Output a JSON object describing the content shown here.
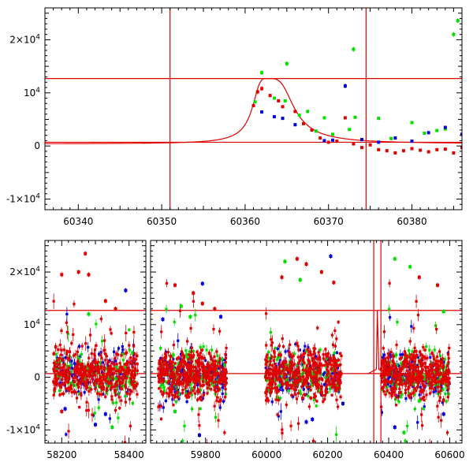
{
  "chart_data": [
    {
      "type": "scatter",
      "panel": "top",
      "title": "",
      "xlabel": "",
      "ylabel": "",
      "xlim": [
        60336,
        60386
      ],
      "ylim": [
        -12000,
        26000
      ],
      "xticks": [
        60340,
        60350,
        60360,
        60370,
        60380
      ],
      "xtick_labels": [
        "60340",
        "60350",
        "60360",
        "60370",
        "60380"
      ],
      "yticks": [
        -10000,
        0,
        10000,
        20000
      ],
      "ytick_labels": [
        {
          "base": "-1×10",
          "exp": "4"
        },
        {
          "base": "0",
          "exp": ""
        },
        {
          "base": "10",
          "exp": "4"
        },
        {
          "base": "2×10",
          "exp": "4"
        }
      ],
      "vlines": [
        60351,
        60374.5
      ],
      "hlines": [
        12700,
        700
      ],
      "model_curve": {
        "t0": 60362.7,
        "peak": 12700,
        "baseline": 400
      },
      "series": [
        {
          "color": "#e00000",
          "points": [
            [
              60361.0,
              7600
            ],
            [
              60361.5,
              10200
            ],
            [
              60362.0,
              10800
            ],
            [
              60363.0,
              9500
            ],
            [
              60364.0,
              8500
            ],
            [
              60364.5,
              7400
            ],
            [
              60366.0,
              6500
            ],
            [
              60367.0,
              4200
            ],
            [
              60368.0,
              3000
            ],
            [
              60369.0,
              1500
            ],
            [
              60370.0,
              700
            ],
            [
              60371.0,
              900
            ],
            [
              60372.0,
              5300
            ],
            [
              60373.0,
              400
            ],
            [
              60374.0,
              -300
            ],
            [
              60375.0,
              200
            ],
            [
              60376.0,
              -700
            ],
            [
              60377.0,
              -900
            ],
            [
              60378.0,
              -1300
            ],
            [
              60379.0,
              -900
            ],
            [
              60380.0,
              -500
            ],
            [
              60381.0,
              -800
            ],
            [
              60382.0,
              -1100
            ],
            [
              60383.0,
              -700
            ],
            [
              60384.0,
              -600
            ],
            [
              60385.0,
              -1300
            ],
            [
              60386.0,
              -300
            ]
          ]
        },
        {
          "color": "#00e000",
          "points": [
            [
              60361.2,
              8300
            ],
            [
              60362.0,
              13800
            ],
            [
              60363.5,
              9000
            ],
            [
              60364.8,
              8500
            ],
            [
              60365.0,
              15500
            ],
            [
              60366.5,
              5800
            ],
            [
              60367.5,
              6500
            ],
            [
              60368.5,
              2800
            ],
            [
              60369.5,
              5300
            ],
            [
              60370.5,
              2200
            ],
            [
              60372.5,
              3100
            ],
            [
              60373.0,
              18200
            ],
            [
              60373.2,
              5400
            ],
            [
              60376.0,
              5200
            ],
            [
              60377.5,
              1400
            ],
            [
              60380.0,
              4400
            ],
            [
              60381.5,
              2400
            ],
            [
              60383.0,
              2900
            ],
            [
              60384.0,
              3200
            ],
            [
              60385.0,
              21000
            ],
            [
              60385.5,
              23600
            ]
          ]
        },
        {
          "color": "#0000e0",
          "points": [
            [
              60362.0,
              6400
            ],
            [
              60363.5,
              5500
            ],
            [
              60364.5,
              5200
            ],
            [
              60366.0,
              4000
            ],
            [
              60369.5,
              1000
            ],
            [
              60370.5,
              1100
            ],
            [
              60372.0,
              11300
            ],
            [
              60374.0,
              1200
            ],
            [
              60376.0,
              700
            ],
            [
              60378.0,
              1500
            ],
            [
              60380.0,
              900
            ],
            [
              60382.0,
              2500
            ],
            [
              60384.0,
              3500
            ],
            [
              60386.0,
              2200
            ]
          ]
        }
      ]
    },
    {
      "type": "scatter",
      "panel": "bottom",
      "title": "",
      "xlabel": "",
      "ylabel": "",
      "xlim_left": [
        58150,
        58450
      ],
      "xlim_right": [
        59620,
        60640
      ],
      "ylim": [
        -12500,
        26000
      ],
      "xticks": [
        58200,
        58400,
        59800,
        60000,
        60200,
        60400,
        60600
      ],
      "xtick_labels": [
        "58200",
        "58400",
        "59800",
        "60000",
        "60200",
        "60400",
        "60600"
      ],
      "yticks": [
        -10000,
        0,
        10000,
        20000
      ],
      "ytick_labels": [
        {
          "base": "-1×10",
          "exp": "4"
        },
        {
          "base": "0",
          "exp": ""
        },
        {
          "base": "10",
          "exp": "4"
        },
        {
          "base": "2×10",
          "exp": "4"
        }
      ],
      "vlines": [
        60351,
        60374.5
      ],
      "hlines": [
        12700,
        700
      ],
      "seasons": [
        [
          58175,
          58425
        ],
        [
          59645,
          59870
        ],
        [
          59995,
          60245
        ],
        [
          60375,
          60600
        ]
      ],
      "outliers": [
        {
          "color": "#e00000",
          "points": [
            [
              58200,
              19500
            ],
            [
              58250,
              20000
            ],
            [
              58270,
              23500
            ],
            [
              58280,
              19500
            ],
            [
              58330,
              14500
            ],
            [
              58360,
              13000
            ],
            [
              59700,
              17500
            ],
            [
              59760,
              16000
            ],
            [
              59790,
              14000
            ],
            [
              59830,
              13000
            ],
            [
              60050,
              19000
            ],
            [
              60100,
              22500
            ],
            [
              60130,
              21500
            ],
            [
              60180,
              20000
            ],
            [
              60220,
              18000
            ],
            [
              60500,
              19000
            ],
            [
              60560,
              17500
            ],
            [
              58200,
              -6500
            ],
            [
              59700,
              -3500
            ]
          ]
        },
        {
          "color": "#00e000",
          "points": [
            [
              58280,
              12000
            ],
            [
              58350,
              -9500
            ],
            [
              59720,
              13500
            ],
            [
              59750,
              11500
            ],
            [
              60060,
              22000
            ],
            [
              60110,
              18500
            ],
            [
              60420,
              22500
            ],
            [
              60450,
              -10500
            ],
            [
              60470,
              21000
            ],
            [
              60500,
              -4500
            ],
            [
              60580,
              12500
            ],
            [
              59700,
              -6500
            ]
          ]
        },
        {
          "color": "#0000e0",
          "points": [
            [
              58390,
              16500
            ],
            [
              58210,
              -6000
            ],
            [
              58300,
              -9000
            ],
            [
              58330,
              -7000
            ],
            [
              59660,
              11000
            ],
            [
              59790,
              17800
            ],
            [
              59850,
              11500
            ],
            [
              60210,
              23000
            ],
            [
              60150,
              -8000
            ],
            [
              60250,
              -5000
            ],
            [
              60420,
              -9500
            ],
            [
              60580,
              -7000
            ],
            [
              60130,
              -8500
            ],
            [
              59780,
              -11000
            ]
          ]
        }
      ]
    }
  ]
}
